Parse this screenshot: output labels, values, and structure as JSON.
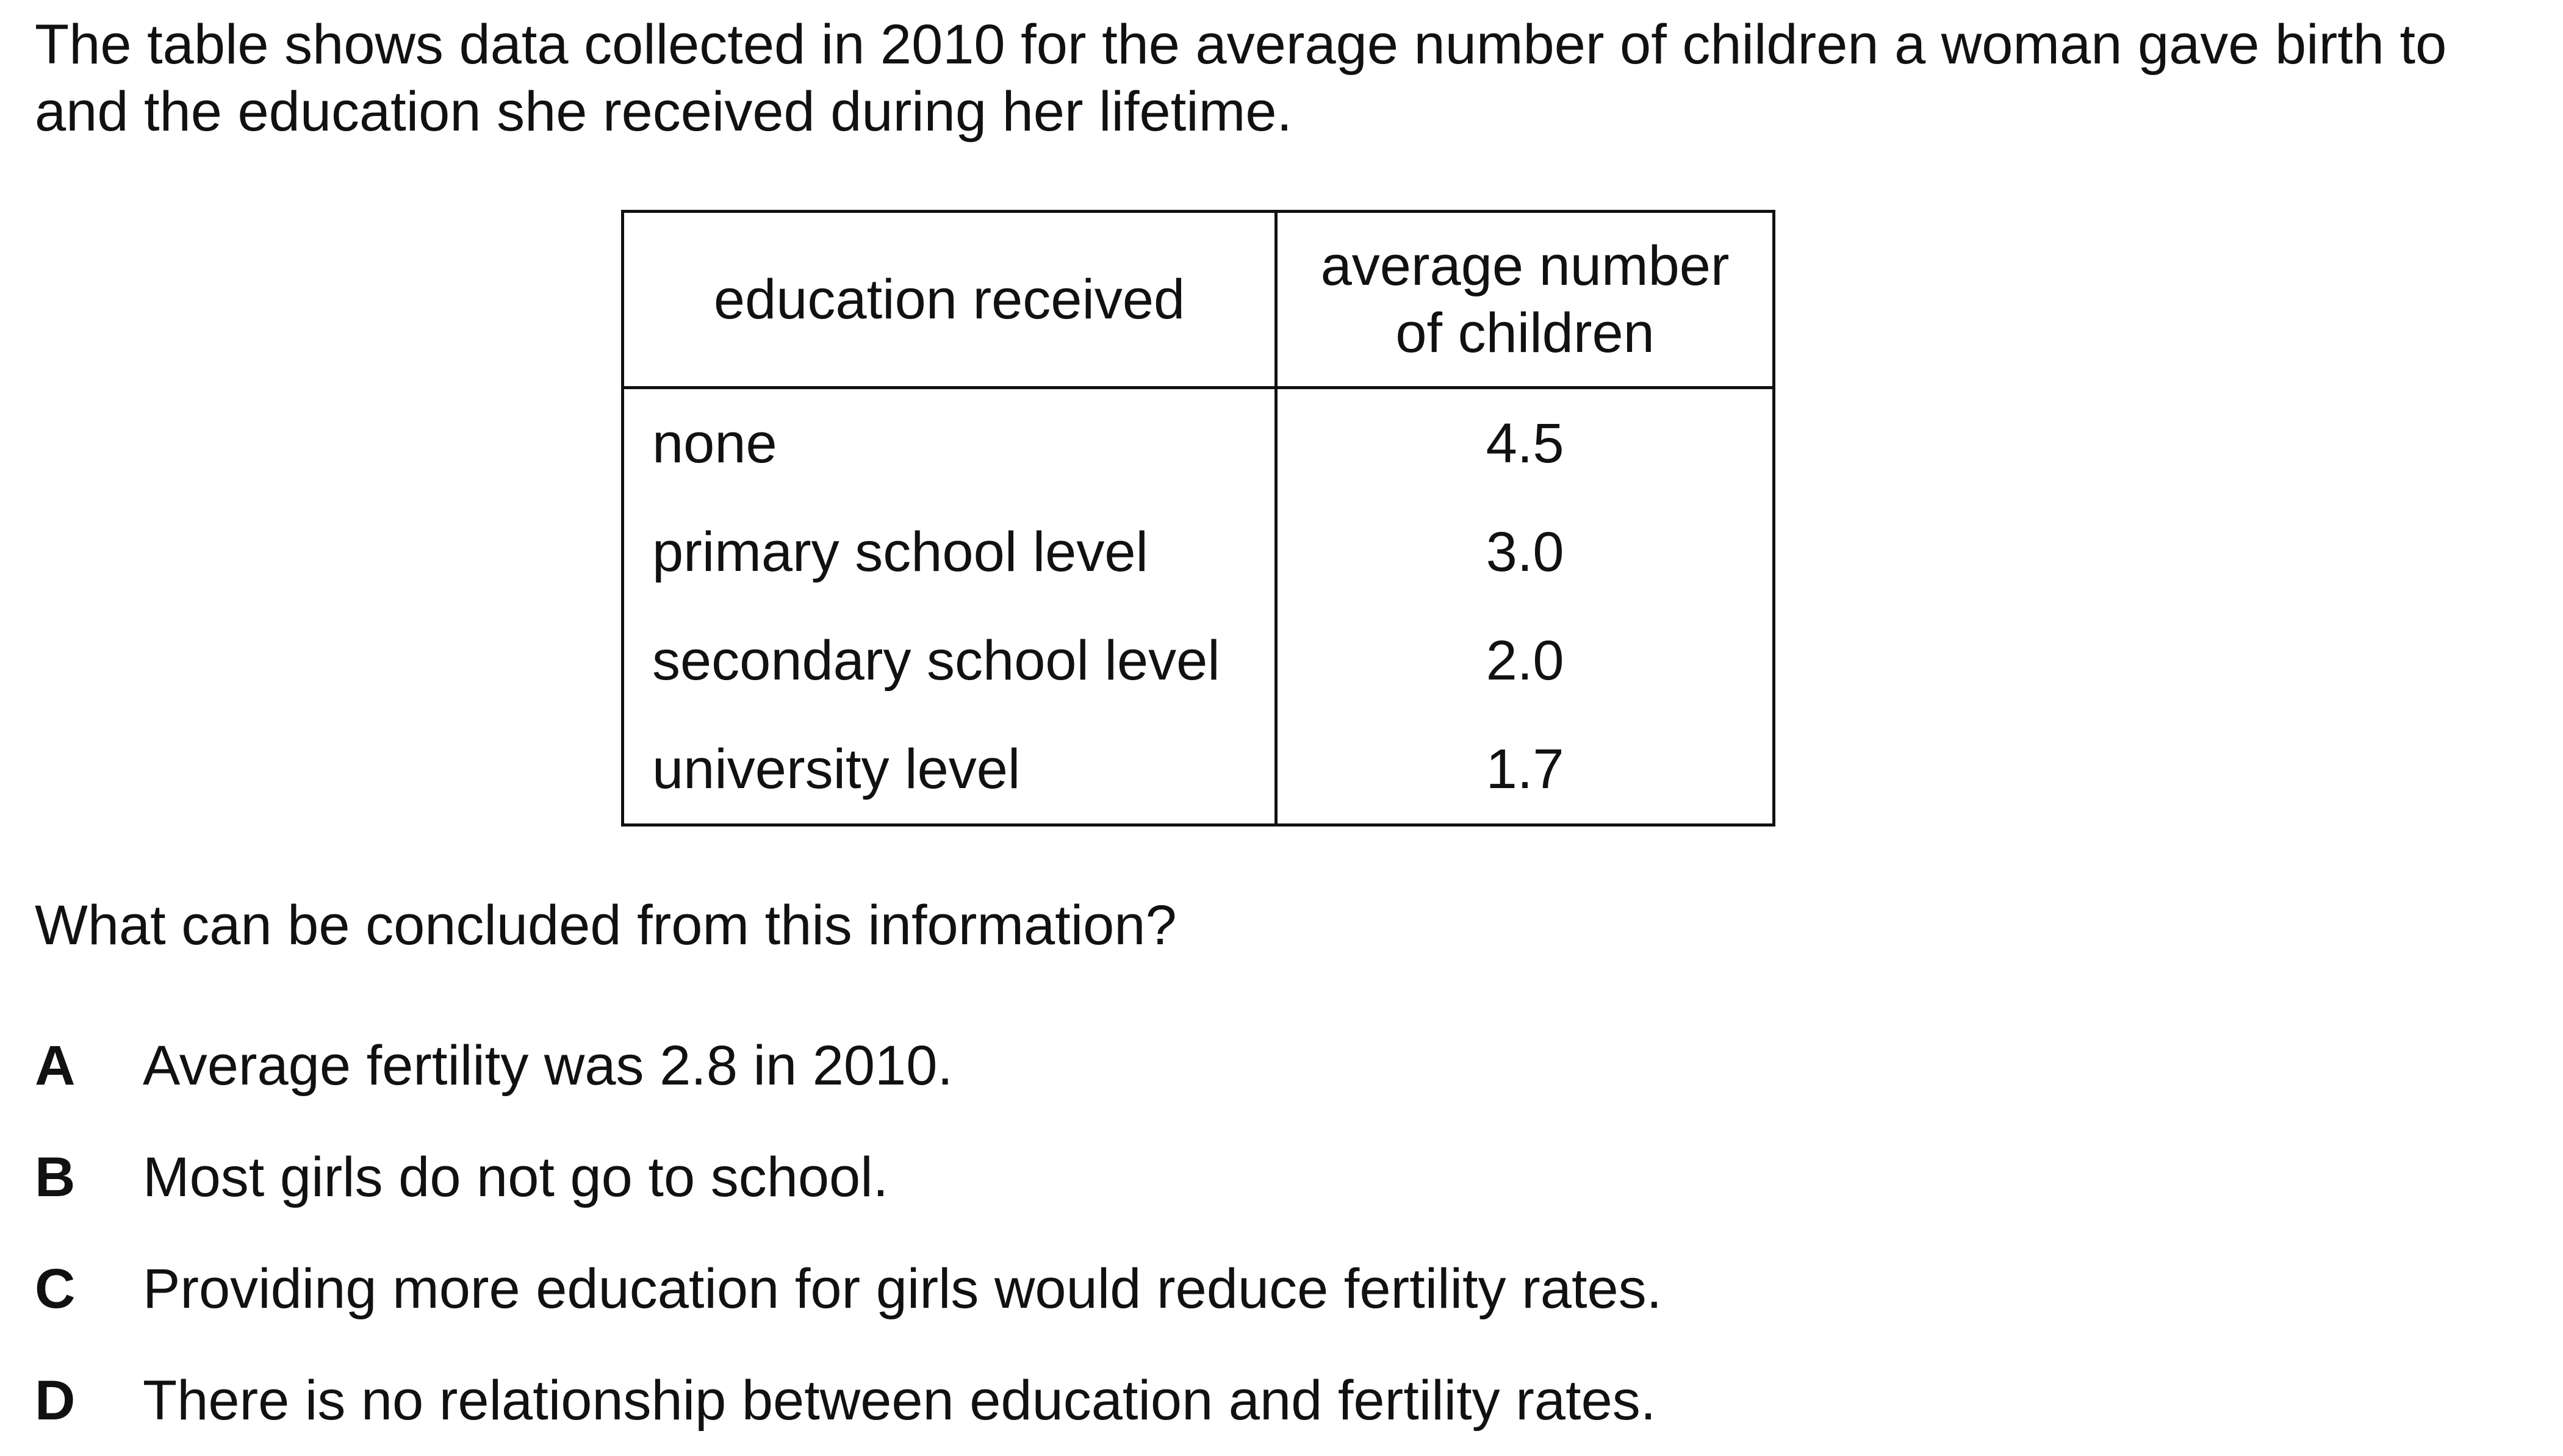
{
  "intro": {
    "line1": "The table shows data collected in 2010 for the average number of children a woman gave birth to",
    "line2": "and the education she received during her lifetime."
  },
  "table": {
    "headers": [
      "education received",
      "average number of children"
    ],
    "rows": [
      {
        "education": "none",
        "average": "4.5"
      },
      {
        "education": "primary school level",
        "average": "3.0"
      },
      {
        "education": "secondary school level",
        "average": "2.0"
      },
      {
        "education": "university level",
        "average": "1.7"
      }
    ]
  },
  "question": "What can be concluded from this information?",
  "options": [
    {
      "letter": "A",
      "text": "Average fertility was 2.8 in 2010."
    },
    {
      "letter": "B",
      "text": "Most girls do not go to school."
    },
    {
      "letter": "C",
      "text": "Providing more education for girls would reduce fertility rates."
    },
    {
      "letter": "D",
      "text": "There is no relationship between education and fertility rates."
    }
  ]
}
